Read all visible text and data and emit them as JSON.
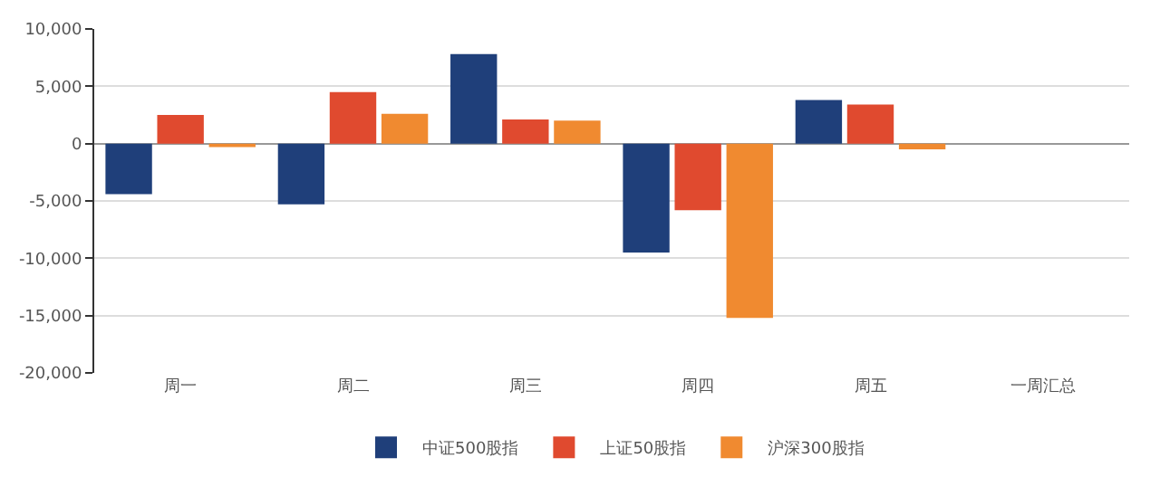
{
  "chart_data": {
    "type": "bar",
    "categories": [
      "周一",
      "周二",
      "周三",
      "周四",
      "周五",
      "一周汇总"
    ],
    "series": [
      {
        "name": "中证500股指",
        "color": "#1f3f7a",
        "values": [
          -4400,
          -5300,
          7800,
          -9500,
          3800,
          null
        ]
      },
      {
        "name": "上证50股指",
        "color": "#e04a2f",
        "values": [
          2500,
          4500,
          2100,
          -5800,
          3400,
          null
        ]
      },
      {
        "name": "沪深300股指",
        "color": "#f08a30",
        "values": [
          -300,
          2600,
          2000,
          -15200,
          -500,
          null
        ]
      }
    ],
    "ylim": [
      -20000,
      10000
    ],
    "yticks": [
      {
        "value": -20000,
        "label": "-20,000"
      },
      {
        "value": -15000,
        "label": "-15,000"
      },
      {
        "value": -10000,
        "label": "-10,000"
      },
      {
        "value": -5000,
        "label": "-5,000"
      },
      0,
      {
        "value": 5000,
        "label": "5,000"
      },
      {
        "value": 10000,
        "label": "10,000"
      }
    ],
    "grid": "y",
    "legend": "bottom"
  }
}
